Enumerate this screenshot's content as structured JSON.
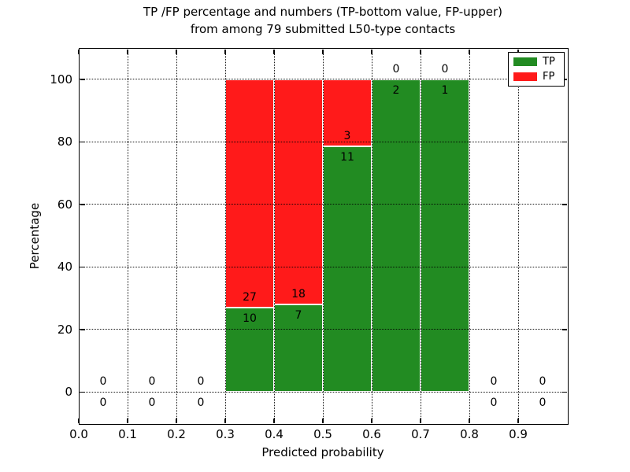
{
  "title": {
    "line1": "TP /FP percentage and numbers (TP-bottom value, FP-upper)",
    "line2": "from among 79 submitted L50-type contacts"
  },
  "chart_data": {
    "type": "bar",
    "stacked": true,
    "title": "TP /FP percentage and numbers (TP-bottom value, FP-upper)\nfrom among 79 submitted L50-type contacts",
    "xlabel": "Predicted probability",
    "ylabel": "Percentage",
    "xlim": [
      0.0,
      1.0
    ],
    "ylim": [
      -10,
      110
    ],
    "xticks": [
      0.0,
      0.1,
      0.2,
      0.3,
      0.4,
      0.5,
      0.6,
      0.7,
      0.8,
      0.9
    ],
    "xtick_labels": [
      "0.0",
      "0.1",
      "0.2",
      "0.3",
      "0.4",
      "0.5",
      "0.6",
      "0.7",
      "0.8",
      "0.9"
    ],
    "yticks": [
      0,
      20,
      40,
      60,
      80,
      100
    ],
    "ytick_labels": [
      "0",
      "20",
      "40",
      "60",
      "80",
      "100"
    ],
    "grid": true,
    "grid_style": "dotted",
    "bar_width": 0.1,
    "total_contacts": 79,
    "legend": {
      "position": "upper right",
      "entries": [
        {
          "label": "TP",
          "color": "#228b22"
        },
        {
          "label": "FP",
          "color": "#ff1a1a"
        }
      ]
    },
    "bins": [
      {
        "x": 0.05,
        "tp": 0,
        "fp": 0
      },
      {
        "x": 0.15,
        "tp": 0,
        "fp": 0
      },
      {
        "x": 0.25,
        "tp": 0,
        "fp": 0
      },
      {
        "x": 0.35,
        "tp": 10,
        "fp": 27
      },
      {
        "x": 0.45,
        "tp": 7,
        "fp": 18
      },
      {
        "x": 0.55,
        "tp": 11,
        "fp": 3
      },
      {
        "x": 0.65,
        "tp": 2,
        "fp": 0
      },
      {
        "x": 0.75,
        "tp": 1,
        "fp": 0
      },
      {
        "x": 0.85,
        "tp": 0,
        "fp": 0
      },
      {
        "x": 0.95,
        "tp": 0,
        "fp": 0
      }
    ]
  },
  "colors": {
    "tp": "#228b22",
    "fp": "#ff1a1a",
    "grid": "#000000",
    "text": "#000000",
    "background": "#ffffff"
  }
}
